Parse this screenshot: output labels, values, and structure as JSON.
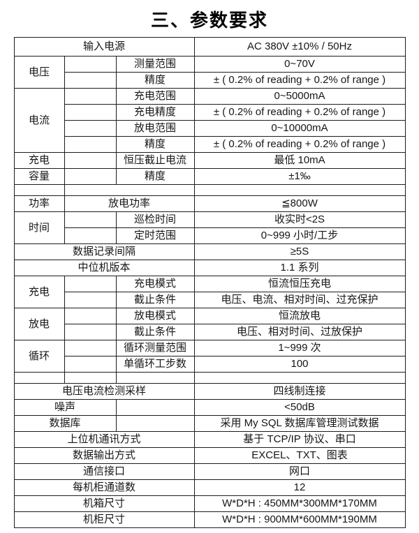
{
  "page": {
    "title": "三、参数要求"
  },
  "colors": {
    "background": "#ffffff",
    "text": "#161616",
    "border": "#1c1c1c"
  },
  "table": {
    "input_power": {
      "label": "输入电源",
      "value": "AC 380V ±10% / 50Hz"
    },
    "voltage": {
      "name": "电压",
      "items": [
        {
          "label": "测量范围",
          "value": "0~70V"
        },
        {
          "label": "精度",
          "value": "± ( 0.2% of reading + 0.2% of range )"
        }
      ]
    },
    "current": {
      "name": "电流",
      "items": [
        {
          "label": "充电范围",
          "value": "0~5000mA"
        },
        {
          "label": "充电精度",
          "value": "± ( 0.2% of reading + 0.2% of range )"
        },
        {
          "label": "放电范围",
          "value": "0~10000mA"
        },
        {
          "label": "精度",
          "value": "± ( 0.2% of reading + 0.2% of range )"
        }
      ]
    },
    "charge_cutoff": {
      "name": "充电",
      "label": "恒压截止电流",
      "value": "最低 10mA"
    },
    "capacity": {
      "name": "容量",
      "label": "精度",
      "value": "±1‰"
    },
    "power": {
      "name": "功率",
      "label": "放电功率",
      "value": "≦800W"
    },
    "time": {
      "name": "时间",
      "items": [
        {
          "label": "巡检时间",
          "value": "收实时<2S"
        },
        {
          "label": "定时范围",
          "value": "0~999 小时/工步"
        }
      ]
    },
    "record_interval": {
      "label": "数据记录间隔",
      "value": "≥5S"
    },
    "mid_machine_version": {
      "label": "中位机版本",
      "value": "1.1 系列"
    },
    "charging": {
      "name": "充电",
      "items": [
        {
          "label": "充电模式",
          "value": "恒流恒压充电"
        },
        {
          "label": "截止条件",
          "value": "电压、电流、相对时间、过充保护"
        }
      ]
    },
    "discharging": {
      "name": "放电",
      "items": [
        {
          "label": "放电模式",
          "value": "恒流放电"
        },
        {
          "label": "截止条件",
          "value": "电压、相对时间、过放保护"
        }
      ]
    },
    "cycle": {
      "name": "循环",
      "items": [
        {
          "label": "循环测量范围",
          "value": "1~999 次"
        },
        {
          "label": "单循环工步数",
          "value": "100"
        }
      ]
    },
    "sampling": {
      "label": "电压电流检测采样",
      "value": "四线制连接"
    },
    "noise": {
      "label": "噪声",
      "value": "<50dB"
    },
    "database": {
      "label": "数据库",
      "value": "采用 My SQL 数据库管理测试数据"
    },
    "comm_method": {
      "label": "上位机通讯方式",
      "value": "基于 TCP/IP 协议、串口"
    },
    "data_output": {
      "label": "数据输出方式",
      "value": "EXCEL、TXT、图表"
    },
    "comm_interface": {
      "label": "通信接口",
      "value": "网口"
    },
    "channels_per_cabinet": {
      "label": "每机柜通道数",
      "value": "12"
    },
    "chassis_size": {
      "label": "机箱尺寸",
      "value": "W*D*H : 450MM*300MM*170MM"
    },
    "cabinet_size": {
      "label": "机柜尺寸",
      "value": "W*D*H : 900MM*600MM*190MM"
    }
  }
}
